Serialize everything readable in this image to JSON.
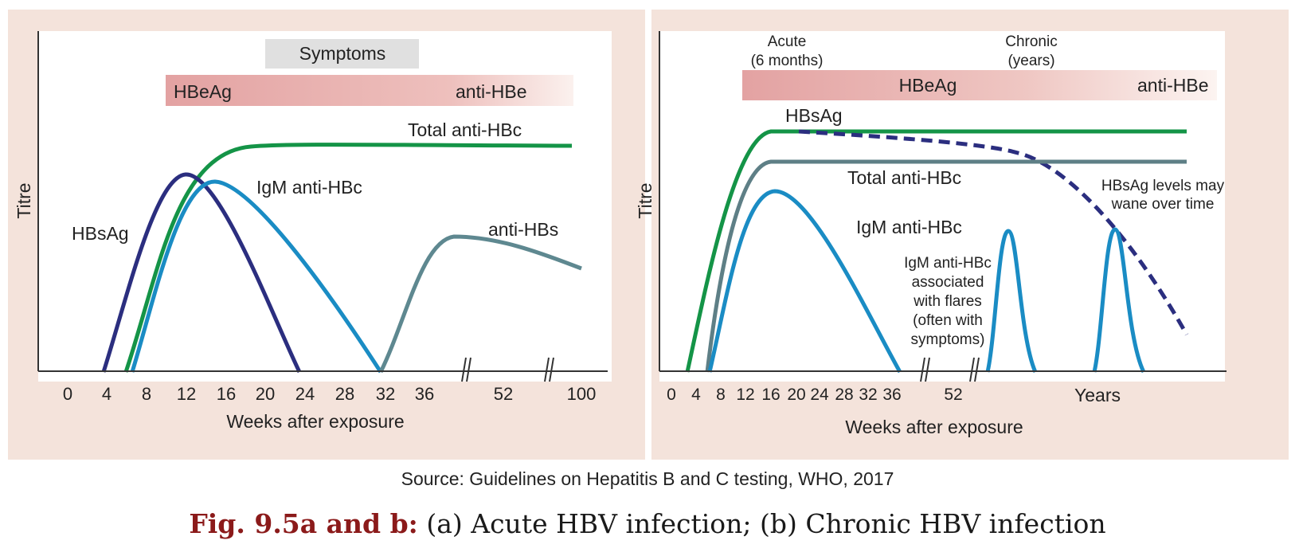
{
  "panel_a": {
    "symptoms": "Symptoms",
    "hbeag": "HBeAg",
    "anti_hbe": "anti-HBe",
    "ylabel": "Titre",
    "xlabel": "Weeks after exposure",
    "ticks": [
      "0",
      "4",
      "8",
      "12",
      "16",
      "20",
      "24",
      "28",
      "32",
      "36",
      "52",
      "100"
    ],
    "curves": {
      "total_anti_hbc": "Total anti-HBc",
      "igm_anti_hbc": "IgM anti-HBc",
      "hbsag": "HBsAg",
      "anti_hbs": "anti-HBs"
    }
  },
  "panel_b": {
    "acute_l1": "Acute",
    "acute_l2": "(6 months)",
    "chronic_l1": "Chronic",
    "chronic_l2": "(years)",
    "hbeag": "HBeAg",
    "anti_hbe": "anti-HBe",
    "ylabel": "Titre",
    "xlabel": "Weeks after exposure",
    "ticks": [
      "0",
      "4",
      "8",
      "12",
      "16",
      "20",
      "24",
      "28",
      "32",
      "36",
      "52"
    ],
    "years_label": "Years",
    "curves": {
      "hbsag": "HBsAg",
      "total_anti_hbc": "Total anti-HBc",
      "igm_anti_hbc": "IgM anti-HBc"
    },
    "wane_l1": "HBsAg levels may",
    "wane_l2": "wane over time",
    "flare_lines": [
      "IgM anti-HBc",
      "associated",
      "with flares",
      "(often with",
      "symptoms)"
    ]
  },
  "source": "Source: Guidelines on Hepatitis B and C testing, WHO, 2017",
  "caption_prefix": "Fig. 9.5a and b:",
  "caption_text": " (a) Acute HBV infection; (b) Chronic HBV infection",
  "colors": {
    "background_panel": "#f4e3db",
    "hbeag_bar": "#e3a2a2",
    "symptoms_box": "#e0e0e0",
    "total_anti_hbc": "#149447",
    "igm_anti_hbc": "#1a8cc4",
    "hbsag_acute": "#2b2e7f",
    "hbsag_chronic_dashed": "#2b2e7f",
    "anti_hbs": "#5e8890",
    "total_anti_hbc_chronic": "#5e7f86",
    "caption_prefix": "#8b1a1a"
  }
}
